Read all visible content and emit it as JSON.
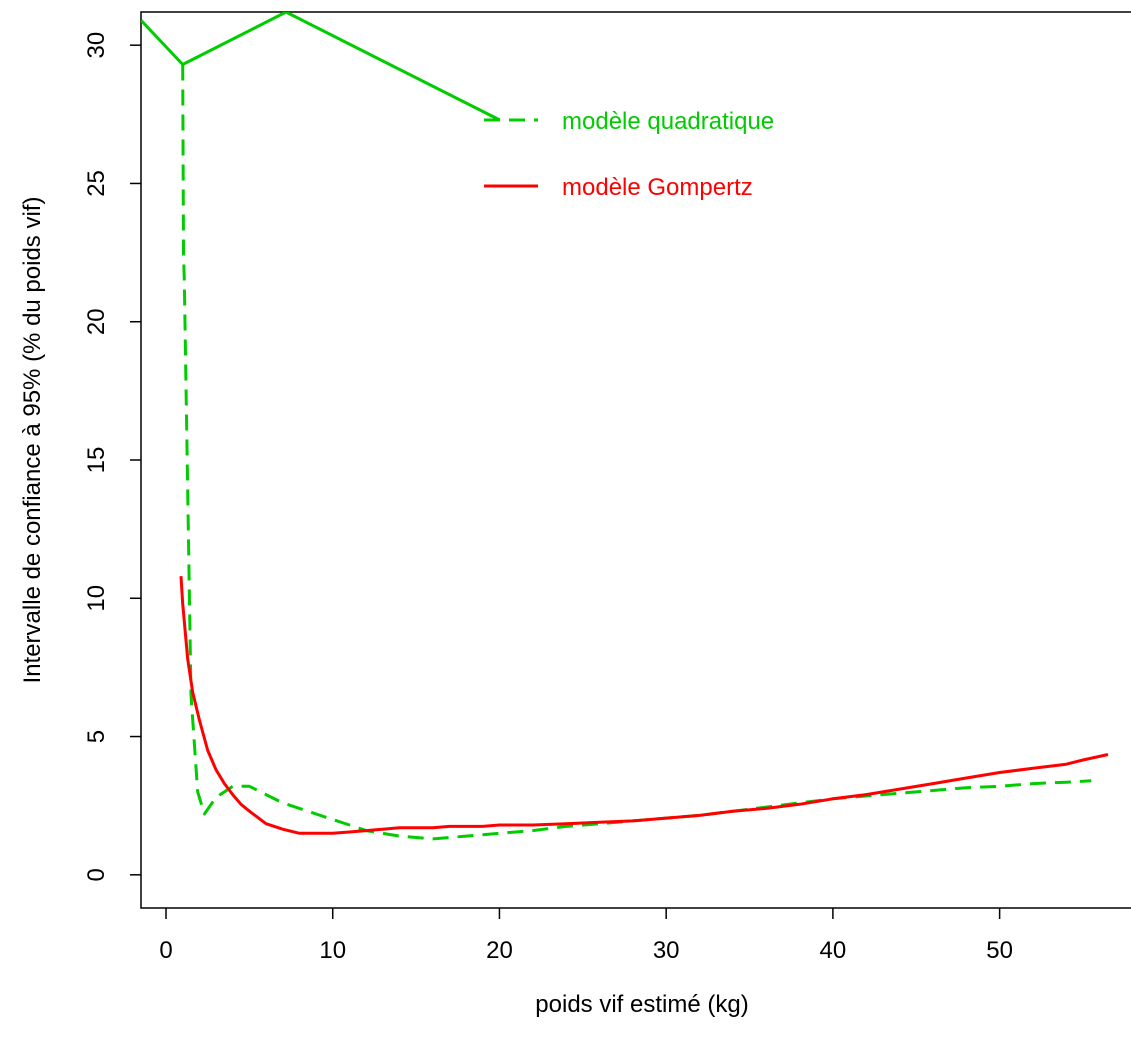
{
  "chart_data": {
    "type": "line",
    "title": "",
    "xlabel": "poids vif estimé (kg)",
    "ylabel": "Intervalle de confiance à 95% (% du poids vif)",
    "xlim": [
      -1.5,
      58
    ],
    "ylim": [
      -1.2,
      31.2
    ],
    "xticks": [
      0,
      10,
      20,
      30,
      40,
      50
    ],
    "yticks": [
      0,
      5,
      10,
      15,
      20,
      25,
      30
    ],
    "grid": false,
    "legend": {
      "placement": "top-center",
      "border": false
    },
    "series": [
      {
        "name": "modèle quadratique",
        "color": "#00CC00",
        "dash": "dashed",
        "x": [
          1.0,
          1.05,
          1.1,
          1.5,
          1.9,
          2.3,
          3.0,
          4.0,
          5.0,
          6.0,
          7.0,
          8.0,
          9.0,
          10.0,
          11.0,
          12.0,
          13.0,
          14.0,
          15.0,
          16.0,
          17.0,
          18.0,
          19.0,
          20.0,
          22.0,
          24.0,
          26.0,
          28.0,
          30.0,
          32.0,
          34.0,
          36.0,
          38.0,
          40.0,
          42.0,
          44.0,
          46.0,
          48.0,
          50.0,
          52.0,
          54.0,
          55.5
        ],
        "y": [
          29.3,
          22.5,
          21.5,
          6.5,
          3.0,
          2.2,
          2.8,
          3.2,
          3.2,
          2.9,
          2.6,
          2.4,
          2.2,
          2.0,
          1.8,
          1.6,
          1.5,
          1.4,
          1.35,
          1.3,
          1.35,
          1.4,
          1.45,
          1.5,
          1.6,
          1.75,
          1.85,
          1.95,
          2.05,
          2.15,
          2.3,
          2.45,
          2.6,
          2.75,
          2.85,
          2.95,
          3.05,
          3.15,
          3.2,
          3.3,
          3.35,
          3.4
        ]
      },
      {
        "name": "modèle Gompertz",
        "color": "#FF0000",
        "dash": "solid",
        "x": [
          0.9,
          1.0,
          1.3,
          1.6,
          2.0,
          2.5,
          3.0,
          3.5,
          4.0,
          4.5,
          5.0,
          6.0,
          7.0,
          8.0,
          9.0,
          10.0,
          11.0,
          12.0,
          13.0,
          14.0,
          15.0,
          16.0,
          17.0,
          18.0,
          19.0,
          20.0,
          22.0,
          24.0,
          26.0,
          28.0,
          30.0,
          32.0,
          34.0,
          36.0,
          38.0,
          40.0,
          42.0,
          44.0,
          46.0,
          48.0,
          50.0,
          52.0,
          54.0,
          55.0,
          56.5
        ],
        "y": [
          10.8,
          9.8,
          7.8,
          6.6,
          5.6,
          4.5,
          3.8,
          3.3,
          2.9,
          2.55,
          2.3,
          1.85,
          1.65,
          1.5,
          1.5,
          1.5,
          1.55,
          1.6,
          1.65,
          1.7,
          1.7,
          1.7,
          1.75,
          1.75,
          1.75,
          1.8,
          1.8,
          1.85,
          1.9,
          1.95,
          2.05,
          2.15,
          2.3,
          2.4,
          2.55,
          2.75,
          2.9,
          3.1,
          3.3,
          3.5,
          3.7,
          3.85,
          4.0,
          4.15,
          4.35
        ]
      }
    ],
    "overlay_line": {
      "color": "#00CC00",
      "dash": "solid",
      "x": [
        -1.5,
        1.0,
        7.2,
        20.0
      ],
      "y": [
        30.9,
        29.3,
        31.2,
        27.3
      ]
    }
  }
}
